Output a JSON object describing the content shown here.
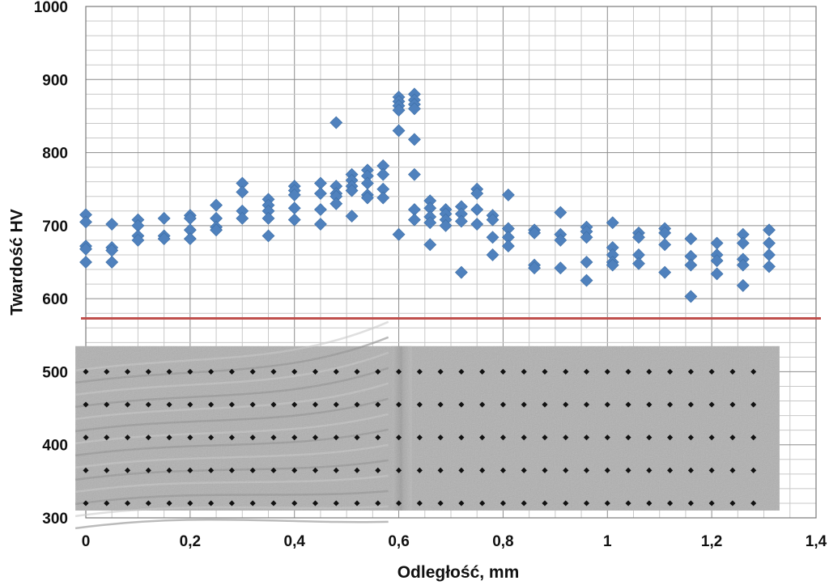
{
  "chart_data": {
    "type": "scatter",
    "title": "",
    "xlabel": "Odległość, mm",
    "ylabel": "Twardość HV",
    "xlim": [
      0,
      1.4
    ],
    "ylim": [
      300,
      1000
    ],
    "x_ticks": [
      "0",
      "0,2",
      "0,4",
      "0,6",
      "0,8",
      "1",
      "1,2",
      "1,4"
    ],
    "y_ticks": [
      "300",
      "400",
      "500",
      "600",
      "700",
      "800",
      "900",
      "1000"
    ],
    "grid": true,
    "legend": "none",
    "series": [
      {
        "marker": "diamond",
        "color": "#4f81bd",
        "points": [
          [
            0,
            715
          ],
          [
            0,
            705
          ],
          [
            0,
            672
          ],
          [
            0,
            668
          ],
          [
            0,
            650
          ],
          [
            0.05,
            702
          ],
          [
            0.05,
            670
          ],
          [
            0.05,
            666
          ],
          [
            0.05,
            650
          ],
          [
            0.1,
            708
          ],
          [
            0.1,
            700
          ],
          [
            0.1,
            686
          ],
          [
            0.1,
            680
          ],
          [
            0.15,
            710
          ],
          [
            0.15,
            686
          ],
          [
            0.15,
            682
          ],
          [
            0.2,
            714
          ],
          [
            0.2,
            710
          ],
          [
            0.2,
            694
          ],
          [
            0.2,
            682
          ],
          [
            0.25,
            728
          ],
          [
            0.25,
            710
          ],
          [
            0.25,
            698
          ],
          [
            0.25,
            694
          ],
          [
            0.3,
            758
          ],
          [
            0.3,
            746
          ],
          [
            0.3,
            720
          ],
          [
            0.3,
            710
          ],
          [
            0.35,
            736
          ],
          [
            0.35,
            728
          ],
          [
            0.35,
            720
          ],
          [
            0.35,
            710
          ],
          [
            0.35,
            686
          ],
          [
            0.4,
            754
          ],
          [
            0.4,
            748
          ],
          [
            0.4,
            742
          ],
          [
            0.4,
            724
          ],
          [
            0.4,
            708
          ],
          [
            0.45,
            758
          ],
          [
            0.45,
            744
          ],
          [
            0.45,
            722
          ],
          [
            0.45,
            702
          ],
          [
            0.48,
            841
          ],
          [
            0.48,
            754
          ],
          [
            0.48,
            744
          ],
          [
            0.48,
            740
          ],
          [
            0.48,
            730
          ],
          [
            0.51,
            770
          ],
          [
            0.51,
            762
          ],
          [
            0.51,
            754
          ],
          [
            0.51,
            748
          ],
          [
            0.51,
            713
          ],
          [
            0.54,
            776
          ],
          [
            0.54,
            768
          ],
          [
            0.54,
            758
          ],
          [
            0.54,
            742
          ],
          [
            0.54,
            738
          ],
          [
            0.57,
            782
          ],
          [
            0.57,
            770
          ],
          [
            0.57,
            750
          ],
          [
            0.57,
            738
          ],
          [
            0.6,
            876
          ],
          [
            0.6,
            870
          ],
          [
            0.6,
            864
          ],
          [
            0.6,
            858
          ],
          [
            0.6,
            830
          ],
          [
            0.6,
            688
          ],
          [
            0.63,
            880
          ],
          [
            0.63,
            872
          ],
          [
            0.63,
            866
          ],
          [
            0.63,
            860
          ],
          [
            0.63,
            818
          ],
          [
            0.63,
            770
          ],
          [
            0.63,
            722
          ],
          [
            0.63,
            708
          ],
          [
            0.66,
            734
          ],
          [
            0.66,
            724
          ],
          [
            0.66,
            712
          ],
          [
            0.66,
            704
          ],
          [
            0.66,
            674
          ],
          [
            0.69,
            722
          ],
          [
            0.69,
            716
          ],
          [
            0.69,
            708
          ],
          [
            0.69,
            700
          ],
          [
            0.72,
            726
          ],
          [
            0.72,
            716
          ],
          [
            0.72,
            706
          ],
          [
            0.72,
            636
          ],
          [
            0.75,
            750
          ],
          [
            0.75,
            744
          ],
          [
            0.75,
            722
          ],
          [
            0.75,
            702
          ],
          [
            0.78,
            714
          ],
          [
            0.78,
            708
          ],
          [
            0.78,
            684
          ],
          [
            0.78,
            660
          ],
          [
            0.81,
            742
          ],
          [
            0.81,
            696
          ],
          [
            0.81,
            684
          ],
          [
            0.81,
            672
          ],
          [
            0.86,
            694
          ],
          [
            0.86,
            690
          ],
          [
            0.86,
            646
          ],
          [
            0.86,
            642
          ],
          [
            0.91,
            718
          ],
          [
            0.91,
            688
          ],
          [
            0.91,
            680
          ],
          [
            0.91,
            642
          ],
          [
            0.96,
            698
          ],
          [
            0.96,
            692
          ],
          [
            0.96,
            684
          ],
          [
            0.96,
            650
          ],
          [
            0.96,
            625
          ],
          [
            1.01,
            704
          ],
          [
            1.01,
            670
          ],
          [
            1.01,
            660
          ],
          [
            1.01,
            650
          ],
          [
            1.01,
            646
          ],
          [
            1.06,
            690
          ],
          [
            1.06,
            684
          ],
          [
            1.06,
            660
          ],
          [
            1.06,
            648
          ],
          [
            1.11,
            696
          ],
          [
            1.11,
            690
          ],
          [
            1.11,
            674
          ],
          [
            1.11,
            636
          ],
          [
            1.16,
            682
          ],
          [
            1.16,
            658
          ],
          [
            1.16,
            646
          ],
          [
            1.16,
            603
          ],
          [
            1.21,
            676
          ],
          [
            1.21,
            660
          ],
          [
            1.21,
            652
          ],
          [
            1.21,
            634
          ],
          [
            1.26,
            688
          ],
          [
            1.26,
            676
          ],
          [
            1.26,
            654
          ],
          [
            1.26,
            646
          ],
          [
            1.26,
            618
          ],
          [
            1.31,
            694
          ],
          [
            1.31,
            676
          ],
          [
            1.31,
            660
          ],
          [
            1.31,
            644
          ]
        ]
      }
    ],
    "reference_line": {
      "orientation": "horizontal",
      "y": 573,
      "color": "#c0504d"
    },
    "inset_image": {
      "description_hidden": true,
      "x_range": [
        -0.02,
        1.33
      ],
      "y_range": [
        310,
        535
      ],
      "indent_rows_y": [
        320,
        365,
        410,
        455,
        500
      ]
    }
  }
}
